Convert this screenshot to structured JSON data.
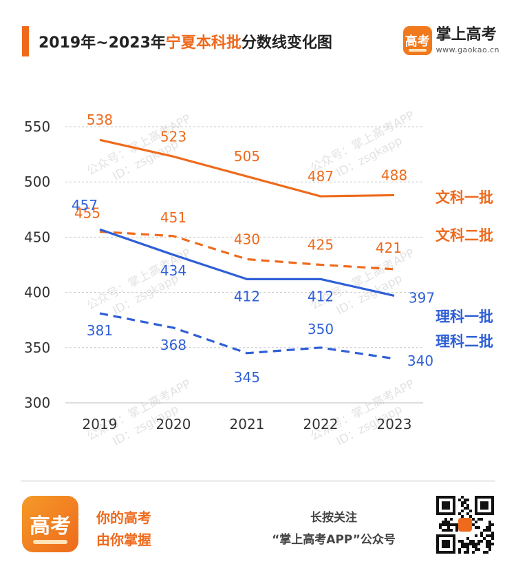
{
  "header": {
    "title_prefix": "2019年~2023年",
    "title_highlight": "宁夏本科批",
    "title_suffix": "分数线变化图",
    "brand_name": "掌上高考",
    "brand_url": "www.gaokao.cn",
    "brand_logo_text": "高考"
  },
  "watermark": {
    "line1": "公众号：掌上高考APP",
    "line2": "ID：zsgkapp"
  },
  "chart_data": {
    "type": "line",
    "x": [
      "2019",
      "2020",
      "2021",
      "2022",
      "2023"
    ],
    "yticks": [
      550,
      500,
      450,
      400,
      350,
      300
    ],
    "ylim": [
      300,
      550
    ],
    "grid": true,
    "legend": "right",
    "series": [
      {
        "name": "文科一批",
        "values": [
          538,
          523,
          505,
          487,
          488
        ],
        "color": "#ee6a1c",
        "dash": "solid"
      },
      {
        "name": "文科二批",
        "values": [
          455,
          451,
          430,
          425,
          421
        ],
        "color": "#ee6a1c",
        "dash": "dashed"
      },
      {
        "name": "理科一批",
        "values": [
          457,
          434,
          412,
          412,
          397
        ],
        "color": "#2e5fd6",
        "dash": "solid"
      },
      {
        "name": "理科二批",
        "values": [
          381,
          368,
          345,
          350,
          340
        ],
        "color": "#2e5fd6",
        "dash": "dashed"
      }
    ]
  },
  "footer": {
    "logo_text": "高考",
    "slogan_line1": "你的高考",
    "slogan_line2": "由你掌握",
    "follow_line1": "长按关注",
    "follow_line2": "“掌上高考APP”公众号"
  }
}
